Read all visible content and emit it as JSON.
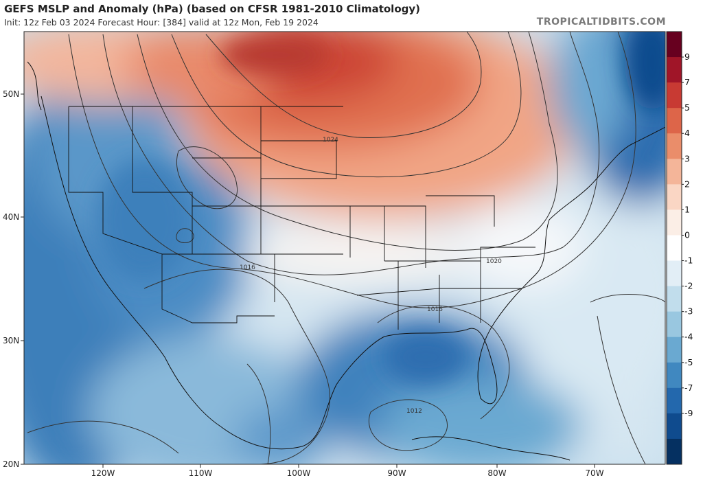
{
  "header": {
    "title": "GEFS MSLP and Anomaly (hPa) (based on CFSR 1981-2010 Climatology)",
    "subtitle": "Init: 12z Feb 03 2024   Forecast Hour: [384]   valid at 12z Mon, Feb 19 2024",
    "brand": "TROPICALTIDBITS.COM"
  },
  "axes": {
    "lat_labels": [
      "50N",
      "40N",
      "30N",
      "20N"
    ],
    "lon_labels": [
      "120W",
      "110W",
      "100W",
      "90W",
      "80W",
      "70W"
    ]
  },
  "isobars": [
    "1024",
    "1020",
    "1016",
    "1016",
    "1016",
    "1012"
  ],
  "colorbar": {
    "labels": [
      "9",
      "7",
      "5",
      "4",
      "3",
      "2",
      "1",
      "0",
      "-1",
      "-2",
      "-3",
      "-4",
      "-5",
      "-7",
      "-9"
    ],
    "colors": [
      "#67001f",
      "#a01528",
      "#c83a33",
      "#dd6549",
      "#ea8d6a",
      "#f4b599",
      "#fad6c4",
      "#fbeee6",
      "#ffffff",
      "#e2eef6",
      "#c1ddec",
      "#99c7e0",
      "#6aa9d1",
      "#4088c0",
      "#2368ad",
      "#0f4b8e",
      "#053061"
    ]
  },
  "anomaly_centers": [
    {
      "name": "high",
      "lat": 52,
      "lon": -100,
      "value_hpa": 9
    },
    {
      "name": "low-west",
      "lat": 40,
      "lon": -118,
      "value_hpa": -6
    },
    {
      "name": "low-gulf",
      "lat": 28,
      "lon": -86,
      "value_hpa": -6
    },
    {
      "name": "low-atlantic",
      "lat": 48,
      "lon": -64,
      "value_hpa": -8
    }
  ]
}
